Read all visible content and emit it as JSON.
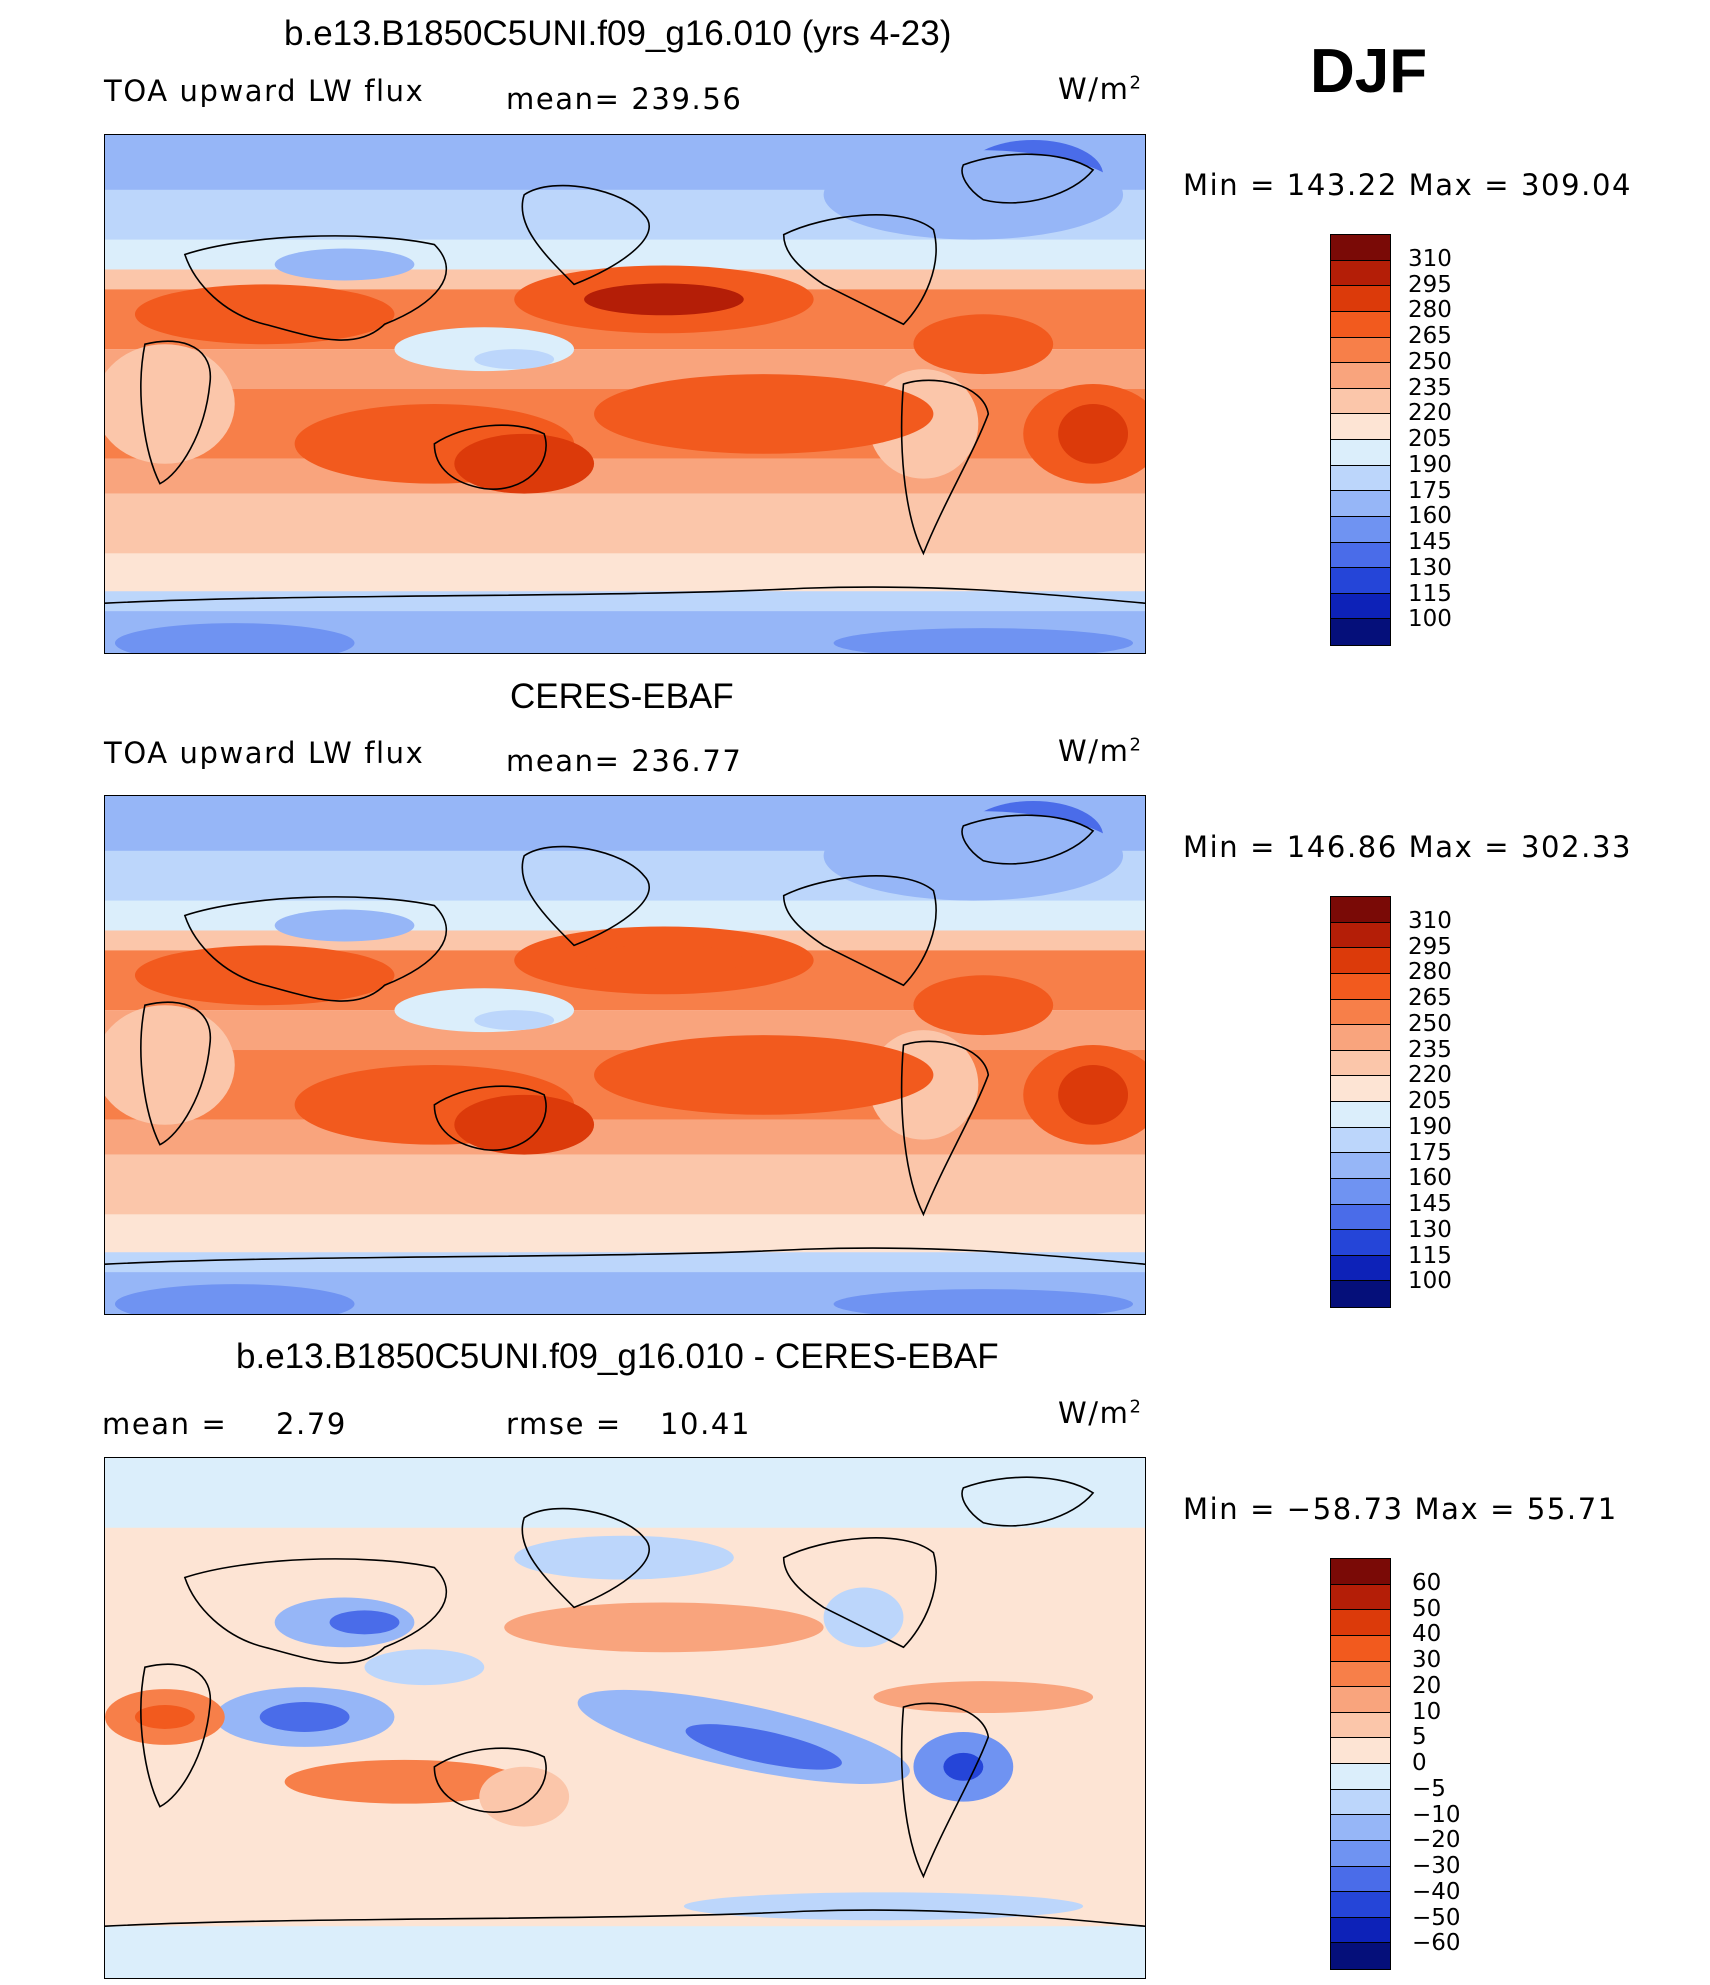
{
  "season": "DJF",
  "chart_data": [
    {
      "type": "heatmap",
      "title": "b.e13.B1850C5UNI.f09_g16.010 (yrs 4-23)",
      "left_label": "TOA upward LW flux",
      "mean_text": "mean= 239.56",
      "unit_base": "W/m",
      "unit_exp": "2",
      "minmax_text": "Min  =  143.22  Max  =  309.04",
      "levels": [
        "310",
        "295",
        "280",
        "265",
        "250",
        "235",
        "220",
        "205",
        "190",
        "175",
        "160",
        "145",
        "130",
        "115",
        "100"
      ],
      "colors": [
        "#7a0a06",
        "#b41e07",
        "#dc3a0a",
        "#f25a1e",
        "#f77f49",
        "#f9a47d",
        "#fbc6aa",
        "#fde4d4",
        "#dbeefb",
        "#bcd6fb",
        "#96b6f7",
        "#6f93f2",
        "#4a6ce9",
        "#2545d8",
        "#0d22b8",
        "#050f7a"
      ],
      "stats": {
        "min": 143.22,
        "max": 309.04,
        "mean": 239.56
      }
    },
    {
      "type": "heatmap",
      "title": "CERES-EBAF",
      "left_label": "TOA upward LW flux",
      "mean_text": "mean= 236.77",
      "unit_base": "W/m",
      "unit_exp": "2",
      "minmax_text": "Min  =  146.86  Max  =  302.33",
      "levels": [
        "310",
        "295",
        "280",
        "265",
        "250",
        "235",
        "220",
        "205",
        "190",
        "175",
        "160",
        "145",
        "130",
        "115",
        "100"
      ],
      "colors": [
        "#7a0a06",
        "#b41e07",
        "#dc3a0a",
        "#f25a1e",
        "#f77f49",
        "#f9a47d",
        "#fbc6aa",
        "#fde4d4",
        "#dbeefb",
        "#bcd6fb",
        "#96b6f7",
        "#6f93f2",
        "#4a6ce9",
        "#2545d8",
        "#0d22b8",
        "#050f7a"
      ],
      "stats": {
        "min": 146.86,
        "max": 302.33,
        "mean": 236.77
      }
    },
    {
      "type": "heatmap",
      "title": "b.e13.B1850C5UNI.f09_g16.010 - CERES-EBAF",
      "mean_label": "mean  =",
      "mean_value": "2.79",
      "rmse_label": "rmse  =",
      "rmse_value": "10.41",
      "unit_base": "W/m",
      "unit_exp": "2",
      "minmax_text": "Min  =  −58.73  Max  =    55.71",
      "levels": [
        "60",
        "50",
        "40",
        "30",
        "20",
        "10",
        "5",
        "0",
        "−5",
        "−10",
        "−20",
        "−30",
        "−40",
        "−50",
        "−60"
      ],
      "colors": [
        "#7a0a06",
        "#b41e07",
        "#dc3a0a",
        "#f25a1e",
        "#f77f49",
        "#f9a47d",
        "#fbc6aa",
        "#fde4d4",
        "#dbeefb",
        "#bcd6fb",
        "#96b6f7",
        "#6f93f2",
        "#4a6ce9",
        "#2545d8",
        "#0d22b8",
        "#050f7a"
      ],
      "stats": {
        "min": -58.73,
        "max": 55.71,
        "mean": 2.79,
        "rmse": 10.41
      }
    }
  ]
}
